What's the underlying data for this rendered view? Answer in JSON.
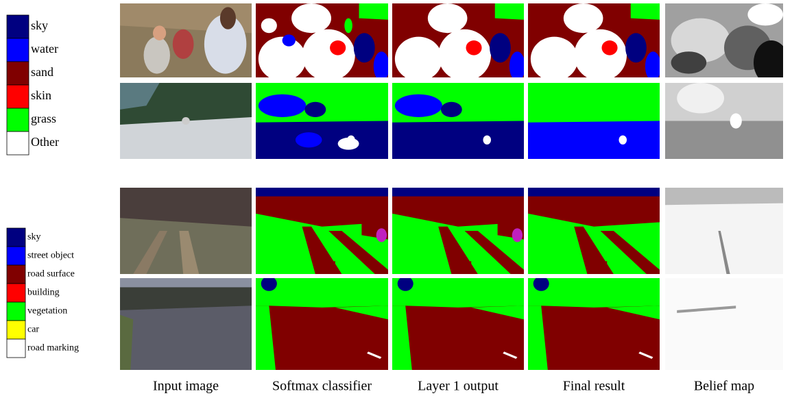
{
  "legend_top": {
    "items": [
      {
        "label": "sky",
        "color": "#000080"
      },
      {
        "label": "water",
        "color": "#0000ff"
      },
      {
        "label": "sand",
        "color": "#800000"
      },
      {
        "label": "skin",
        "color": "#ff0000"
      },
      {
        "label": "grass",
        "color": "#00ff00"
      },
      {
        "label": "Other",
        "color": "#ffffff"
      }
    ]
  },
  "legend_bottom": {
    "items": [
      {
        "label": "sky",
        "color": "#000080"
      },
      {
        "label": "street object",
        "color": "#0000ff"
      },
      {
        "label": "road surface",
        "color": "#800000"
      },
      {
        "label": "building",
        "color": "#ff0000"
      },
      {
        "label": "vegetation",
        "color": "#00ff00"
      },
      {
        "label": "car",
        "color": "#ffff00"
      },
      {
        "label": "road marking",
        "color": "#ffffff"
      }
    ]
  },
  "captions": [
    "Input image",
    "Softmax classifier",
    "Layer 1 output",
    "Final result",
    "Belief map"
  ]
}
